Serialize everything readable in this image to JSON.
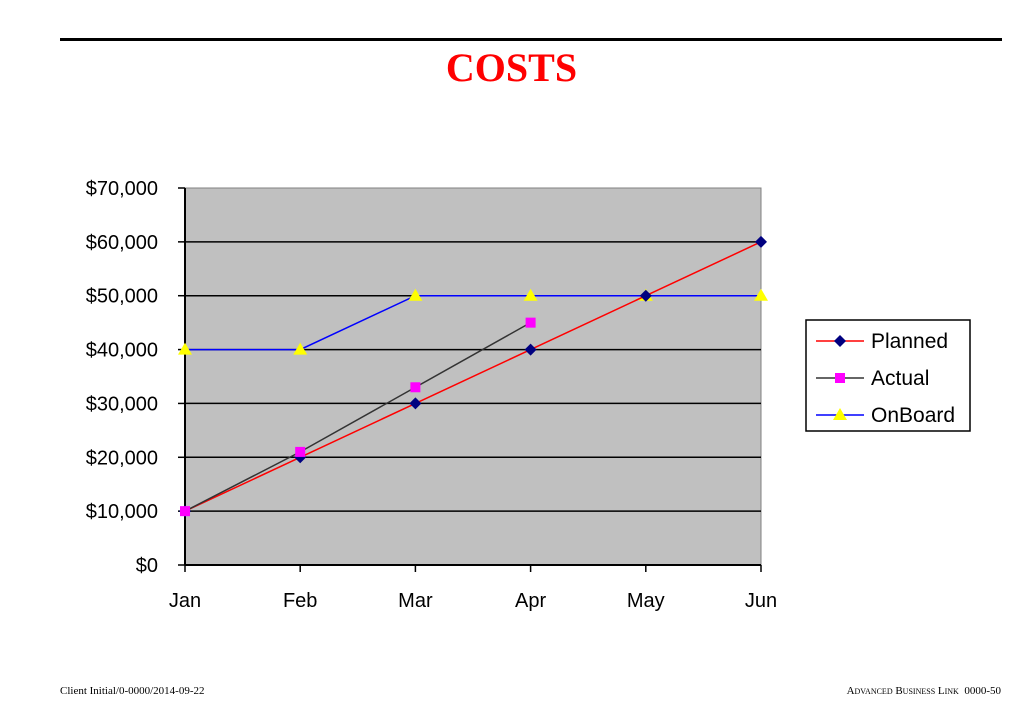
{
  "slide": {
    "title": "COSTS",
    "footer_left": "Client Initial/0-0000/2014-09-22",
    "footer_brand": "Advanced Business Link",
    "footer_page": "0000-50"
  },
  "colors": {
    "title": "#ff0000",
    "plot_background": "#c0c0c0",
    "planned": "#ff0000",
    "planned_marker": "#000080",
    "actual": "#333333",
    "actual_marker": "#ff00ff",
    "onboard": "#0000ff",
    "onboard_marker": "#ffff00"
  },
  "chart_data": {
    "type": "line",
    "title": "COSTS",
    "categories": [
      "Jan",
      "Feb",
      "Mar",
      "Apr",
      "May",
      "Jun"
    ],
    "ylim": [
      0,
      70000
    ],
    "yticks": [
      "$0",
      "$10,000",
      "$20,000",
      "$30,000",
      "$40,000",
      "$50,000",
      "$60,000",
      "$70,000"
    ],
    "grid": "horizontal",
    "legend_position": "right",
    "series": [
      {
        "name": "Planned",
        "values": [
          10000,
          20000,
          30000,
          40000,
          50000,
          60000
        ],
        "marker": "diamond"
      },
      {
        "name": "Actual",
        "values": [
          10000,
          21000,
          33000,
          45000,
          null,
          null
        ],
        "marker": "square"
      },
      {
        "name": "OnBoard",
        "values": [
          40000,
          40000,
          50000,
          50000,
          50000,
          50000
        ],
        "marker": "triangle"
      }
    ]
  }
}
